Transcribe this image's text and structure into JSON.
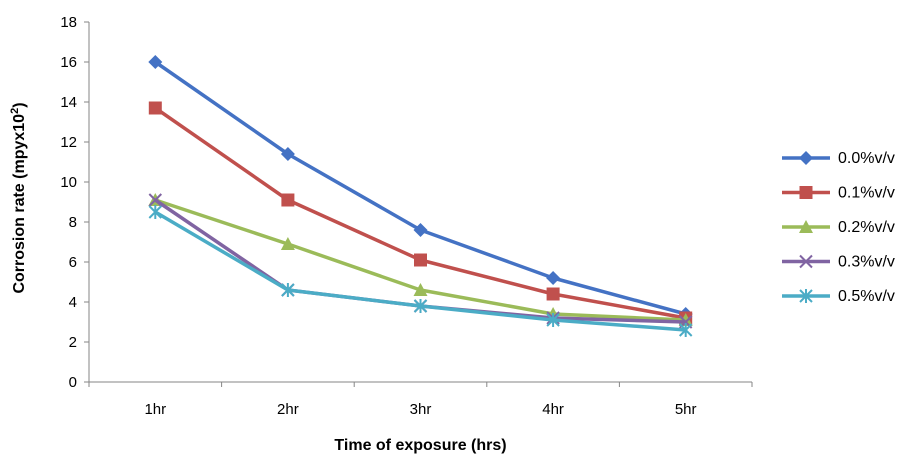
{
  "chart_data": {
    "type": "line",
    "title": "",
    "xlabel": "Time of exposure (hrs)",
    "ylabel": "Corrosion rate (mpyx10²)",
    "ylabel_main": "Corrosion rate (mpyx10",
    "ylabel_sup": "2",
    "ylabel_end": ")",
    "categories": [
      "1hr",
      "2hr",
      "3hr",
      "4hr",
      "5hr"
    ],
    "ylim": [
      0,
      18
    ],
    "yticks": [
      0,
      2,
      4,
      6,
      8,
      10,
      12,
      14,
      16,
      18
    ],
    "grid": false,
    "legend": "right",
    "series": [
      {
        "name": "0.0%v/v",
        "values": [
          16.0,
          11.4,
          7.6,
          5.2,
          3.4
        ],
        "color": "#4472c4",
        "marker": "diamond"
      },
      {
        "name": "0.1%v/v",
        "values": [
          13.7,
          9.1,
          6.1,
          4.4,
          3.2
        ],
        "color": "#c0504d",
        "marker": "square"
      },
      {
        "name": "0.2%v/v",
        "values": [
          9.1,
          6.9,
          4.6,
          3.4,
          3.1
        ],
        "color": "#9bbb59",
        "marker": "triangle"
      },
      {
        "name": "0.3%v/v",
        "values": [
          9.1,
          4.6,
          3.8,
          3.2,
          3.0
        ],
        "color": "#8064a2",
        "marker": "x"
      },
      {
        "name": "0.5%v/v",
        "values": [
          8.5,
          4.6,
          3.8,
          3.1,
          2.6
        ],
        "color": "#4bacc6",
        "marker": "star"
      }
    ]
  }
}
